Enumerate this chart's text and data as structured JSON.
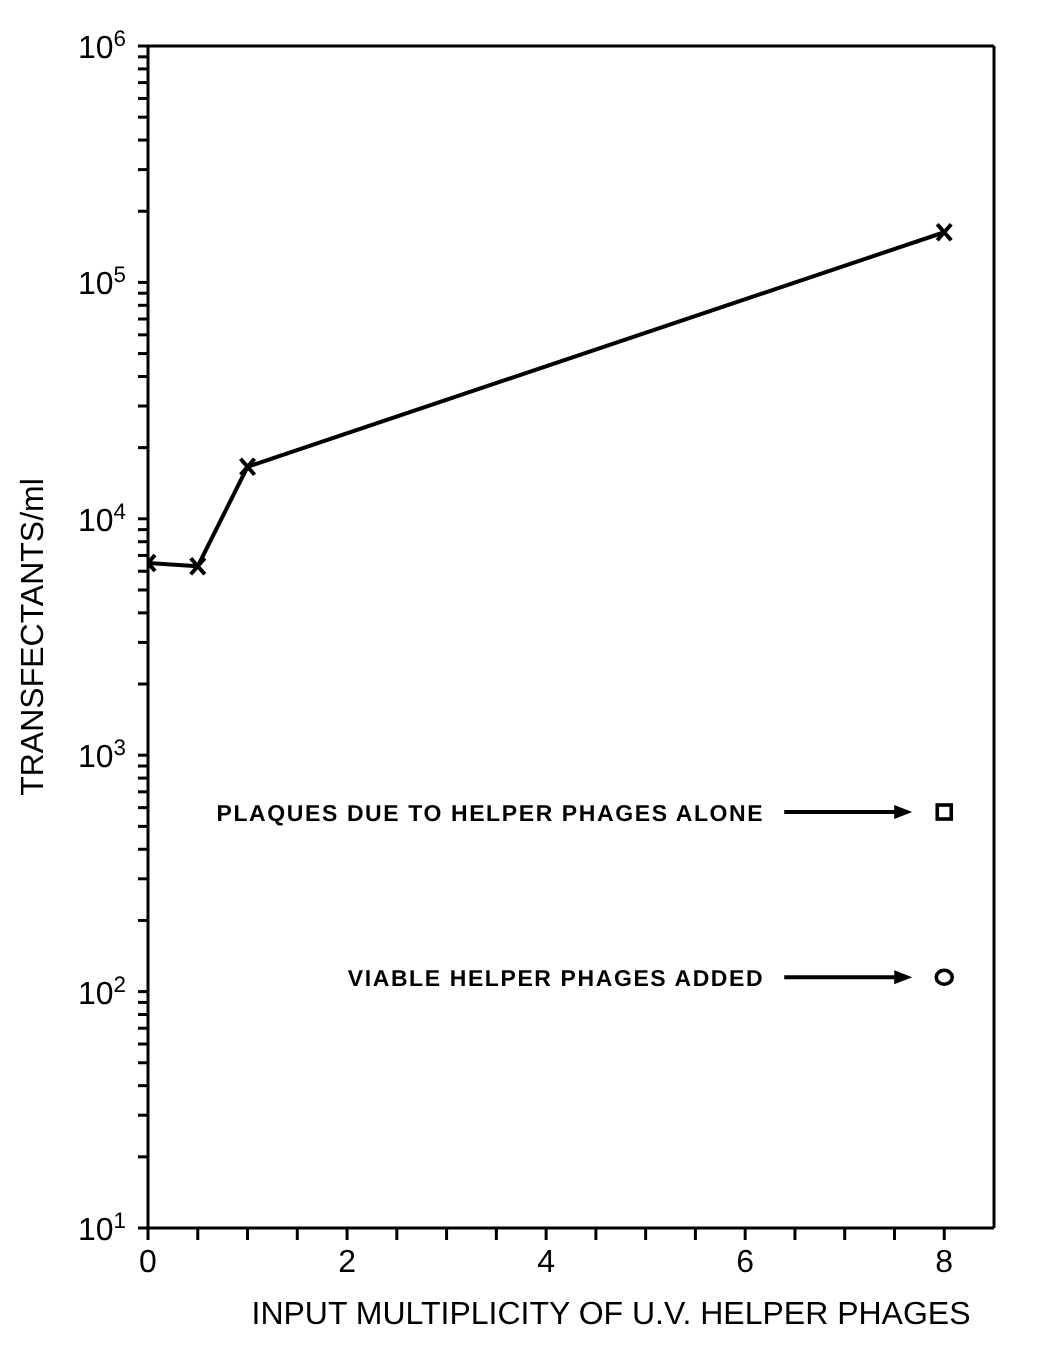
{
  "chart_data": {
    "type": "line",
    "xlabel": "INPUT MULTIPLICITY OF U.V. HELPER PHAGES",
    "ylabel": "TRANSFECTANTS/ml",
    "log": "y",
    "xlim": [
      0,
      8.5
    ],
    "xticks": [
      0,
      {
        "value": 0.5,
        "label": null
      },
      {
        "value": 1,
        "label": null
      },
      {
        "value": 1.5,
        "label": null
      },
      2,
      {
        "value": 2.5,
        "label": null
      },
      {
        "value": 3,
        "label": null
      },
      {
        "value": 3.5,
        "label": null
      },
      4,
      {
        "value": 4.5,
        "label": null
      },
      {
        "value": 5,
        "label": null
      },
      {
        "value": 5.5,
        "label": null
      },
      6,
      {
        "value": 6.5,
        "label": null
      },
      {
        "value": 7,
        "label": null
      },
      {
        "value": 7.5,
        "label": null
      },
      8
    ],
    "ylim": [
      10,
      1000000
    ],
    "yticks": [
      {
        "value": 10,
        "label": "10$^{1}$"
      },
      {
        "value": 20,
        "label": null
      },
      {
        "value": 30,
        "label": null
      },
      {
        "value": 40,
        "label": null
      },
      {
        "value": 50,
        "label": null
      },
      {
        "value": 60,
        "label": null
      },
      {
        "value": 70,
        "label": null
      },
      {
        "value": 80,
        "label": null
      },
      {
        "value": 90,
        "label": null
      },
      {
        "value": 100,
        "label": "10$^{2}$"
      },
      {
        "value": 200,
        "label": null
      },
      {
        "value": 300,
        "label": null
      },
      {
        "value": 400,
        "label": null
      },
      {
        "value": 500,
        "label": null
      },
      {
        "value": 600,
        "label": null
      },
      {
        "value": 700,
        "label": null
      },
      {
        "value": 800,
        "label": null
      },
      {
        "value": 900,
        "label": null
      },
      {
        "value": 1000,
        "label": "10$^{3}$"
      },
      {
        "value": 2000,
        "label": null
      },
      {
        "value": 3000,
        "label": null
      },
      {
        "value": 4000,
        "label": null
      },
      {
        "value": 5000,
        "label": null
      },
      {
        "value": 6000,
        "label": null
      },
      {
        "value": 7000,
        "label": null
      },
      {
        "value": 8000,
        "label": null
      },
      {
        "value": 9000,
        "label": null
      },
      {
        "value": 10000,
        "label": "10$^{4}$"
      },
      {
        "value": 20000,
        "label": null
      },
      {
        "value": 30000,
        "label": null
      },
      {
        "value": 40000,
        "label": null
      },
      {
        "value": 50000,
        "label": null
      },
      {
        "value": 60000,
        "label": null
      },
      {
        "value": 70000,
        "label": null
      },
      {
        "value": 80000,
        "label": null
      },
      {
        "value": 90000,
        "label": null
      },
      {
        "value": 100000,
        "label": "10$^{5}$"
      },
      {
        "value": 200000,
        "label": null
      },
      {
        "value": 300000,
        "label": null
      },
      {
        "value": 400000,
        "label": null
      },
      {
        "value": 500000,
        "label": null
      },
      {
        "value": 600000,
        "label": null
      },
      {
        "value": 700000,
        "label": null
      },
      {
        "value": 800000,
        "label": null
      },
      {
        "value": 900000,
        "label": null
      },
      {
        "value": 1000000,
        "label": "10$^{6}$"
      }
    ],
    "series": [
      {
        "color": "#000000",
        "marker": "cross",
        "x": [
          0,
          0.5,
          1,
          8
        ],
        "values": [
          6500,
          6300,
          16600,
          163000
        ]
      },
      {
        "type": "scatter",
        "color": "#000000",
        "marker": "square",
        "x": [
          8
        ],
        "values": [
          575
        ]
      },
      {
        "type": "scatter",
        "color": "#000000",
        "marker": "circle",
        "x": [
          8
        ],
        "values": [
          115
        ]
      }
    ],
    "annotations": [
      "PLAQUES DUE TO HELPER PHAGES ALONE",
      "VIABLE HELPER PHAGES ADDED"
    ]
  }
}
